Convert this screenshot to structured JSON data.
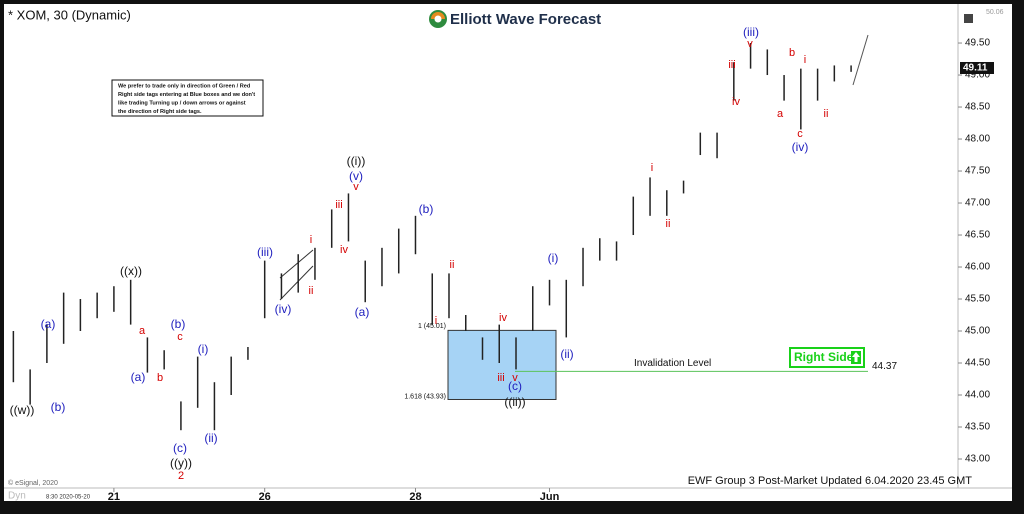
{
  "chart_data": {
    "type": "range_bar",
    "symbol_title": "* XOM, 30 (Dynamic)",
    "brand": "Elliott Wave Forecast",
    "note_lines": [
      "We prefer to trade only in direction of Green / Red",
      "Right side tags entering at Blue boxes and we don't",
      "like trading Turning up / down arrows or against",
      "the direction of Right side tags."
    ],
    "categories": [
      null,
      null,
      null,
      null,
      null,
      null,
      "21",
      null,
      null,
      null,
      null,
      null,
      null,
      null,
      null,
      "26",
      null,
      null,
      null,
      null,
      null,
      null,
      null,
      null,
      "28",
      null,
      null,
      null,
      null,
      null,
      null,
      null,
      "Jun",
      null,
      null,
      null,
      null,
      null,
      null,
      null,
      null,
      null,
      null,
      null,
      null,
      null,
      null,
      null,
      null,
      null,
      null,
      null,
      null,
      null,
      null,
      null,
      null
    ],
    "high": [
      45.0,
      44.4,
      45.1,
      45.6,
      45.5,
      45.6,
      45.7,
      45.8,
      44.9,
      44.7,
      43.9,
      44.6,
      44.2,
      44.6,
      44.75,
      46.1,
      45.9,
      46.2,
      46.3,
      46.9,
      47.15,
      46.1,
      46.3,
      46.6,
      46.8,
      45.9,
      45.9,
      45.25,
      44.9,
      45.1,
      44.9,
      45.7,
      45.8,
      45.8,
      46.3,
      46.45,
      46.4,
      47.1,
      47.4,
      47.2,
      47.35,
      48.1,
      48.1,
      49.2,
      49.5,
      49.4,
      49.0,
      49.1,
      49.1,
      49.15,
      49.15,
      null,
      null,
      null,
      null,
      null,
      null
    ],
    "low": [
      44.2,
      43.85,
      44.5,
      44.8,
      45.0,
      45.2,
      45.3,
      45.1,
      44.35,
      44.4,
      43.45,
      43.8,
      43.45,
      44.0,
      44.55,
      45.2,
      45.5,
      45.6,
      45.8,
      46.3,
      46.4,
      45.45,
      45.7,
      45.9,
      46.2,
      45.1,
      45.2,
      45.0,
      44.55,
      44.5,
      44.4,
      45.0,
      45.4,
      44.9,
      45.7,
      46.1,
      46.1,
      46.5,
      46.8,
      46.8,
      47.15,
      47.75,
      47.7,
      48.6,
      49.1,
      49.0,
      48.6,
      48.15,
      48.6,
      48.9,
      49.05,
      null,
      null,
      null,
      null,
      null,
      null
    ],
    "bar_color": "#222222",
    "ylim": [
      42.7,
      50.06
    ],
    "yticks": [
      {
        "value": 43,
        "label": "43.00"
      },
      {
        "value": 43.5,
        "label": "43.50"
      },
      {
        "value": 44,
        "label": "44.00"
      },
      {
        "value": 44.5,
        "label": "44.50"
      },
      {
        "value": 45,
        "label": "45.00"
      },
      {
        "value": 45.5,
        "label": "45.50"
      },
      {
        "value": 46,
        "label": "46.00"
      },
      {
        "value": 46.5,
        "label": "46.50"
      },
      {
        "value": 47,
        "label": "47.00"
      },
      {
        "value": 47.5,
        "label": "47.50"
      },
      {
        "value": 48,
        "label": "48.00"
      },
      {
        "value": 48.5,
        "label": "48.50"
      },
      {
        "value": 49,
        "label": "49.00"
      },
      {
        "value": 49.5,
        "label": "49.50"
      }
    ],
    "top_value": {
      "value": 50.06,
      "label": "50.06"
    },
    "last_price": {
      "value": 49.11,
      "label": "49.11"
    },
    "box": {
      "top": 45.01,
      "top_label": "1 (45.01)",
      "bottom": 43.93,
      "bottom_label": "1.618 (43.93)",
      "color": "#a6d3f5"
    },
    "invalidation": {
      "label": "Invalidation Level",
      "value": 44.37,
      "color": "#5ac35a"
    },
    "right_side": {
      "label": "Right Side",
      "color": "#19d119"
    },
    "annotations": [
      {
        "text": "((w))",
        "color": "#111111"
      },
      {
        "text": "(a)",
        "color": "#1e1ebe"
      },
      {
        "text": "(b)",
        "color": "#1e1ebe"
      },
      {
        "text": "((x))",
        "color": "#111111"
      },
      {
        "text": "a",
        "color": "#d40000"
      },
      {
        "text": "(a)",
        "color": "#1e1ebe"
      },
      {
        "text": "b",
        "color": "#d40000"
      },
      {
        "text": "c",
        "color": "#d40000"
      },
      {
        "text": "(b)",
        "color": "#1e1ebe"
      },
      {
        "text": "(c)",
        "color": "#1e1ebe"
      },
      {
        "text": "((y))",
        "color": "#111111"
      },
      {
        "text": "2",
        "color": "#d40000"
      },
      {
        "text": "(i)",
        "color": "#1e1ebe"
      },
      {
        "text": "(ii)",
        "color": "#1e1ebe"
      },
      {
        "text": "(iii)",
        "color": "#1e1ebe"
      },
      {
        "text": "(iv)",
        "color": "#1e1ebe"
      },
      {
        "text": "i",
        "color": "#d40000"
      },
      {
        "text": "ii",
        "color": "#d40000"
      },
      {
        "text": "iii",
        "color": "#d40000"
      },
      {
        "text": "iv",
        "color": "#d40000"
      },
      {
        "text": "((i))",
        "color": "#111111"
      },
      {
        "text": "(v)",
        "color": "#1e1ebe"
      },
      {
        "text": "v",
        "color": "#d40000"
      },
      {
        "text": "(a)",
        "color": "#1e1ebe"
      },
      {
        "text": "(b)",
        "color": "#1e1ebe"
      },
      {
        "text": "ii",
        "color": "#d40000"
      },
      {
        "text": "i",
        "color": "#d40000"
      },
      {
        "text": "iv",
        "color": "#d40000"
      },
      {
        "text": "iii",
        "color": "#d40000"
      },
      {
        "text": "v",
        "color": "#d40000"
      },
      {
        "text": "(c)",
        "color": "#1e1ebe"
      },
      {
        "text": "((ii))",
        "color": "#111111"
      },
      {
        "text": "(i)",
        "color": "#1e1ebe"
      },
      {
        "text": "(ii)",
        "color": "#1e1ebe"
      },
      {
        "text": "i",
        "color": "#d40000"
      },
      {
        "text": "ii",
        "color": "#d40000"
      },
      {
        "text": "iii",
        "color": "#d40000"
      },
      {
        "text": "iv",
        "color": "#d40000"
      },
      {
        "text": "(iii)",
        "color": "#1e1ebe"
      },
      {
        "text": "v",
        "color": "#d40000"
      },
      {
        "text": "b",
        "color": "#d40000"
      },
      {
        "text": "a",
        "color": "#d40000"
      },
      {
        "text": "i",
        "color": "#d40000"
      },
      {
        "text": "c",
        "color": "#d40000"
      },
      {
        "text": "(iv)",
        "color": "#1e1ebe"
      },
      {
        "text": "ii",
        "color": "#d40000"
      }
    ],
    "footer": "EWF Group 3 Post-Market Updated 6.04.2020 23.45 GMT",
    "copyright": "© eSignal, 2020",
    "cursor_time": "8:30 2020-05-20"
  }
}
